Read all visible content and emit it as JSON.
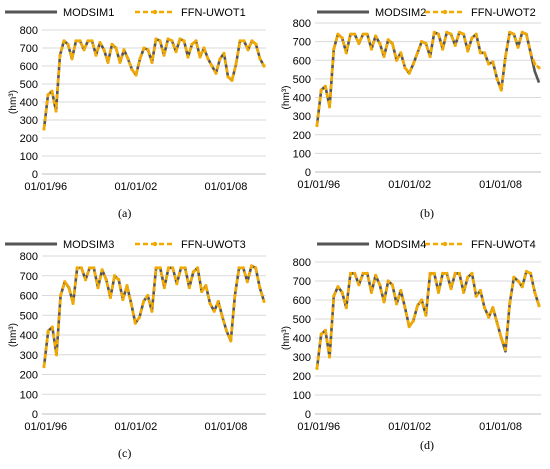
{
  "chart_data": [
    {
      "type": "line",
      "caption": "(a)",
      "ylabel": "(hm³)",
      "ylim": [
        0,
        800
      ],
      "yticks": [
        "0",
        "100",
        "200",
        "300",
        "400",
        "500",
        "600",
        "700",
        "800"
      ],
      "xticks": [
        "01/01/96",
        "01/01/02",
        "01/01/08"
      ],
      "x_range": [
        "1995-10",
        "2010-09"
      ],
      "legend_position": "top",
      "grid": "horizontal",
      "series": [
        {
          "name": "MODSIM1",
          "style": "solid",
          "color": "#555555",
          "values": [
            250,
            440,
            460,
            350,
            660,
            740,
            720,
            640,
            740,
            740,
            690,
            740,
            740,
            660,
            730,
            690,
            620,
            720,
            700,
            620,
            690,
            640,
            580,
            550,
            640,
            700,
            690,
            620,
            750,
            740,
            660,
            750,
            740,
            680,
            750,
            740,
            650,
            720,
            740,
            650,
            700,
            640,
            600,
            560,
            640,
            670,
            540,
            520,
            610,
            740,
            740,
            690,
            740,
            720,
            640,
            600
          ]
        },
        {
          "name": "FFN-UWOT1",
          "style": "dashed",
          "color": "#f2a900",
          "values": [
            250,
            440,
            460,
            350,
            660,
            740,
            720,
            640,
            740,
            740,
            690,
            740,
            740,
            660,
            730,
            690,
            620,
            720,
            700,
            620,
            690,
            640,
            580,
            550,
            640,
            700,
            690,
            620,
            750,
            740,
            660,
            750,
            740,
            680,
            750,
            740,
            650,
            720,
            740,
            650,
            700,
            640,
            600,
            560,
            640,
            670,
            540,
            520,
            610,
            740,
            740,
            690,
            740,
            720,
            640,
            600
          ]
        }
      ]
    },
    {
      "type": "line",
      "caption": "(b)",
      "ylabel": "(hm³)",
      "ylim": [
        0,
        800
      ],
      "yticks": [
        "0",
        "100",
        "200",
        "300",
        "400",
        "500",
        "600",
        "700",
        "800"
      ],
      "xticks": [
        "01/01/96",
        "01/01/02",
        "01/01/08"
      ],
      "x_range": [
        "1995-10",
        "2010-09"
      ],
      "legend_position": "top",
      "grid": "horizontal",
      "series": [
        {
          "name": "MODSIM2",
          "style": "solid",
          "color": "#555555",
          "values": [
            250,
            440,
            460,
            350,
            660,
            740,
            720,
            640,
            740,
            740,
            690,
            740,
            740,
            660,
            730,
            690,
            620,
            710,
            690,
            600,
            640,
            560,
            530,
            580,
            640,
            700,
            690,
            620,
            750,
            740,
            660,
            750,
            740,
            680,
            750,
            740,
            650,
            720,
            740,
            640,
            640,
            580,
            590,
            500,
            440,
            620,
            750,
            740,
            670,
            750,
            740,
            640,
            540,
            480
          ]
        },
        {
          "name": "FFN-UWOT2",
          "style": "dashed",
          "color": "#f2a900",
          "values": [
            250,
            440,
            460,
            350,
            660,
            740,
            720,
            640,
            740,
            740,
            690,
            740,
            740,
            660,
            730,
            690,
            620,
            710,
            690,
            600,
            640,
            560,
            530,
            580,
            640,
            700,
            690,
            620,
            750,
            740,
            660,
            750,
            740,
            680,
            750,
            740,
            650,
            720,
            740,
            640,
            640,
            580,
            590,
            500,
            440,
            620,
            750,
            740,
            670,
            750,
            740,
            640,
            580,
            560
          ]
        }
      ]
    },
    {
      "type": "line",
      "caption": "(c)",
      "ylabel": "(hm³)",
      "ylim": [
        0,
        800
      ],
      "yticks": [
        "0",
        "100",
        "200",
        "300",
        "400",
        "500",
        "600",
        "700",
        "800"
      ],
      "xticks": [
        "01/01/96",
        "01/01/02",
        "01/01/08"
      ],
      "x_range": [
        "1995-10",
        "2010-09"
      ],
      "legend_position": "top",
      "grid": "horizontal",
      "series": [
        {
          "name": "MODSIM3",
          "style": "solid",
          "color": "#555555",
          "values": [
            240,
            420,
            440,
            300,
            600,
            670,
            640,
            560,
            740,
            740,
            680,
            740,
            740,
            640,
            730,
            680,
            590,
            700,
            680,
            580,
            650,
            560,
            460,
            490,
            570,
            600,
            520,
            740,
            740,
            640,
            740,
            740,
            660,
            740,
            740,
            640,
            720,
            740,
            620,
            650,
            560,
            520,
            570,
            490,
            420,
            370,
            600,
            740,
            740,
            670,
            750,
            740,
            640,
            570
          ]
        },
        {
          "name": "FFN-UWOT3",
          "style": "dashed",
          "color": "#f2a900",
          "values": [
            240,
            420,
            440,
            300,
            600,
            670,
            640,
            560,
            740,
            740,
            680,
            740,
            740,
            640,
            730,
            680,
            590,
            700,
            680,
            580,
            650,
            560,
            460,
            490,
            570,
            600,
            520,
            740,
            740,
            640,
            740,
            740,
            660,
            740,
            740,
            640,
            720,
            740,
            620,
            650,
            560,
            520,
            570,
            490,
            420,
            370,
            600,
            740,
            740,
            670,
            750,
            740,
            640,
            570
          ]
        }
      ]
    },
    {
      "type": "line",
      "caption": "(d)",
      "ylabel": "(hm³)",
      "ylim": [
        0,
        800
      ],
      "yticks": [
        "0",
        "100",
        "200",
        "300",
        "400",
        "500",
        "600",
        "700",
        "800"
      ],
      "xticks": [
        "01/01/96",
        "01/01/02",
        "01/01/08"
      ],
      "x_range": [
        "1995-10",
        "2010-09"
      ],
      "legend_position": "top",
      "grid": "horizontal",
      "series": [
        {
          "name": "MODSIM4",
          "style": "solid",
          "color": "#555555",
          "values": [
            240,
            420,
            440,
            300,
            620,
            670,
            640,
            560,
            740,
            740,
            680,
            740,
            740,
            640,
            730,
            680,
            590,
            700,
            680,
            580,
            650,
            560,
            460,
            490,
            570,
            600,
            520,
            740,
            740,
            640,
            740,
            740,
            660,
            740,
            740,
            640,
            720,
            740,
            620,
            650,
            560,
            510,
            560,
            480,
            400,
            330,
            580,
            720,
            700,
            670,
            750,
            740,
            640,
            570
          ]
        },
        {
          "name": "FFN-UWOT4",
          "style": "dashed",
          "color": "#f2a900",
          "values": [
            240,
            420,
            440,
            300,
            620,
            670,
            640,
            560,
            740,
            740,
            680,
            740,
            740,
            640,
            730,
            680,
            590,
            700,
            680,
            580,
            650,
            560,
            460,
            490,
            570,
            600,
            520,
            740,
            740,
            640,
            740,
            740,
            660,
            740,
            740,
            640,
            720,
            740,
            620,
            650,
            560,
            510,
            560,
            480,
            400,
            340,
            580,
            720,
            700,
            670,
            750,
            740,
            640,
            570
          ]
        }
      ]
    }
  ]
}
